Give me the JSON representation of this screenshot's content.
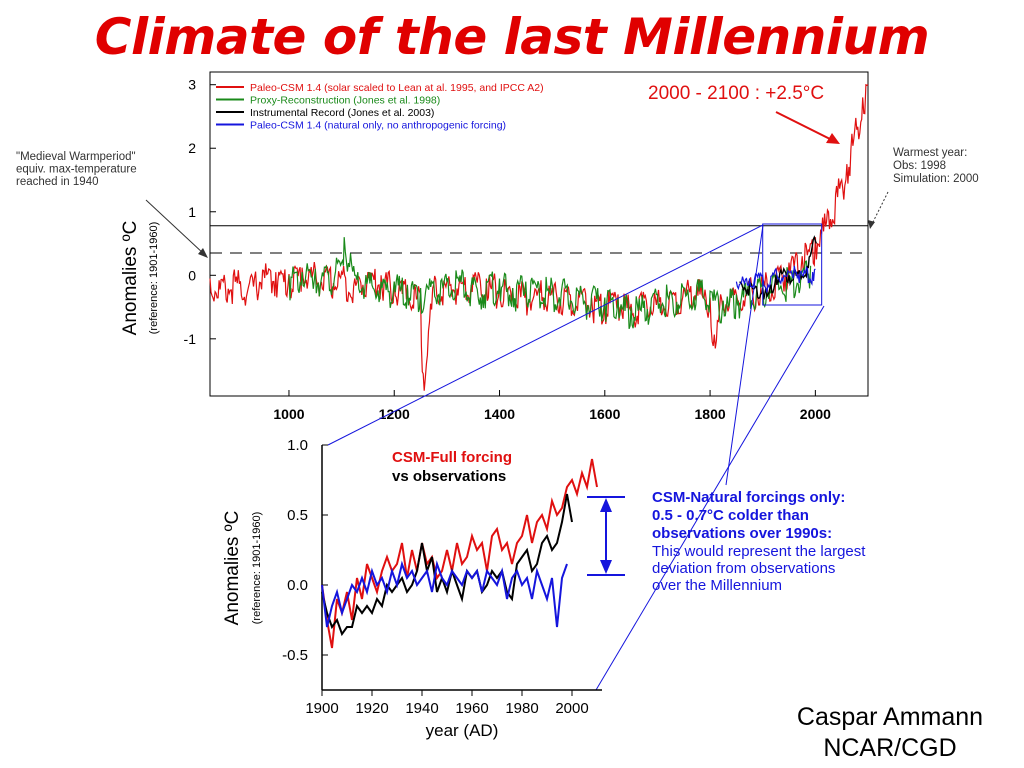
{
  "title": "Climate of the last Millennium",
  "credit": {
    "name": "Caspar Ammann",
    "org": "NCAR/CGD"
  },
  "colors": {
    "title": "#e00000",
    "red": "#e01010",
    "green": "#1a8a1a",
    "black": "#000000",
    "blue": "#1515dd",
    "annotation_blue": "#1515dd"
  },
  "chart_data": [
    {
      "type": "line",
      "ylabel": "Anomalies ºC",
      "ylabel_sub": "(reference: 1901-1960)",
      "xlim": [
        850,
        2100
      ],
      "ylim": [
        -1.9,
        3.2
      ],
      "xticks": [
        "1000",
        "1200",
        "1400",
        "1600",
        "1800",
        "2000"
      ],
      "yticks": [
        "3",
        "2",
        "1",
        "0",
        "-1"
      ],
      "grid": false,
      "legend_position": "top-left",
      "legend": [
        "Paleo-CSM 1.4 (solar scaled to Lean at al. 1995, and IPCC A2)",
        "Proxy-Reconstruction (Jones et al. 1998)",
        "Instrumental Record (Jones et al. 2003)",
        "Paleo-CSM 1.4 (natural only, no anthropogenic forcing)"
      ],
      "reference_lines": [
        {
          "style": "solid",
          "y": 0.78
        },
        {
          "style": "dashed",
          "y": 0.35
        }
      ],
      "annotations": {
        "projection": "2000 - 2100 : +2.5°C",
        "medieval": [
          "\"Medieval Warmperiod\"",
          "equiv. max-temperature",
          "reached in 1940"
        ],
        "warmest": [
          "Warmest year:",
          "Obs: 1998",
          "Simulation: 2000"
        ]
      },
      "series": [
        {
          "name": "Paleo-CSM 1.4 (solar scaled to Lean at al. 1995, and IPCC A2)",
          "color": "red",
          "x": [
            850,
            875,
            900,
            925,
            950,
            975,
            1000,
            1025,
            1050,
            1075,
            1100,
            1125,
            1150,
            1175,
            1200,
            1225,
            1250,
            1255,
            1275,
            1300,
            1325,
            1350,
            1375,
            1400,
            1425,
            1450,
            1475,
            1500,
            1525,
            1550,
            1575,
            1600,
            1625,
            1650,
            1675,
            1700,
            1725,
            1750,
            1775,
            1800,
            1810,
            1820,
            1850,
            1875,
            1900,
            1925,
            1950,
            1975,
            2000,
            2010,
            2025,
            2050,
            2060,
            2075,
            2090,
            2100
          ],
          "y": [
            -0.05,
            -0.1,
            -0.02,
            -0.12,
            0.08,
            0.05,
            0.02,
            0.12,
            0.1,
            0.0,
            0.05,
            -0.05,
            0.05,
            0.0,
            -0.1,
            -0.2,
            -0.3,
            -1.55,
            -0.15,
            -0.1,
            -0.05,
            0.0,
            -0.05,
            -0.15,
            -0.2,
            -0.25,
            -0.2,
            -0.2,
            -0.25,
            -0.3,
            -0.35,
            -0.4,
            -0.3,
            -0.45,
            -0.35,
            -0.35,
            -0.25,
            -0.2,
            -0.15,
            -0.35,
            -1.15,
            -0.3,
            -0.3,
            -0.15,
            -0.1,
            0.0,
            0.2,
            0.3,
            0.6,
            0.7,
            1.0,
            1.5,
            1.75,
            2.3,
            2.8,
            3.0
          ]
        },
        {
          "name": "Proxy-Reconstruction (Jones et al. 1998)",
          "color": "green",
          "x": [
            1000,
            1025,
            1050,
            1075,
            1100,
            1105,
            1125,
            1150,
            1175,
            1200,
            1225,
            1250,
            1275,
            1300,
            1325,
            1350,
            1375,
            1400,
            1425,
            1450,
            1475,
            1500,
            1525,
            1550,
            1575,
            1600,
            1625,
            1650,
            1675,
            1700,
            1725,
            1750,
            1775,
            1800,
            1825,
            1850,
            1875,
            1900,
            1925,
            1950,
            1975,
            1991
          ],
          "y": [
            0.0,
            0.05,
            0.1,
            0.05,
            0.2,
            0.6,
            0.0,
            -0.05,
            -0.1,
            -0.1,
            -0.15,
            -0.2,
            -0.1,
            -0.1,
            0.0,
            -0.15,
            -0.1,
            -0.05,
            -0.2,
            -0.1,
            -0.15,
            -0.15,
            -0.2,
            -0.25,
            -0.3,
            -0.35,
            -0.35,
            -0.5,
            -0.4,
            -0.3,
            -0.25,
            -0.2,
            -0.15,
            -0.25,
            -0.4,
            -0.3,
            -0.2,
            -0.1,
            0.0,
            0.0,
            0.05,
            0.15
          ]
        },
        {
          "name": "Instrumental Record (Jones et al. 2003)",
          "color": "black",
          "x": [
            1856,
            1875,
            1900,
            1910,
            1925,
            1940,
            1950,
            1960,
            1975,
            1985,
            1990,
            1998,
            2002
          ],
          "y": [
            -0.1,
            -0.15,
            -0.2,
            -0.3,
            0.0,
            0.1,
            0.0,
            0.05,
            0.0,
            0.15,
            0.3,
            0.6,
            0.5
          ]
        },
        {
          "name": "Paleo-CSM 1.4 (natural only, no anthropogenic forcing)",
          "color": "blue",
          "x": [
            1850,
            1875,
            1900,
            1910,
            1925,
            1940,
            1950,
            1960,
            1975,
            1985,
            1990,
            1995,
            2000
          ],
          "y": [
            -0.1,
            -0.05,
            0.0,
            -0.15,
            0.1,
            0.0,
            0.05,
            0.15,
            0.0,
            0.1,
            -0.05,
            0.05,
            0.1
          ]
        }
      ]
    },
    {
      "type": "line",
      "ylabel": "Anomalies ºC",
      "ylabel_sub": "(reference: 1901-1960)",
      "xlabel": "year (AD)",
      "xlim": [
        1900,
        2012
      ],
      "ylim": [
        -0.75,
        1.0
      ],
      "xticks": [
        "1900",
        "1920",
        "1940",
        "1960",
        "1980",
        "2000"
      ],
      "yticks": [
        "1.0",
        "0.5",
        "0.0",
        "-0.5"
      ],
      "grid": false,
      "legend_position": "top-left",
      "legend": [
        "CSM-Full forcing",
        "vs observations"
      ],
      "annotation": {
        "bold": [
          "CSM-Natural forcings only:",
          "0.5 - 0.7°C colder than",
          "observations over 1990s:"
        ],
        "normal": [
          "This would represent the largest",
          "deviation from observations",
          "over the Millennium"
        ]
      },
      "series": [
        {
          "name": "CSM-Full forcing",
          "color": "red",
          "x": [
            1900,
            1902,
            1904,
            1906,
            1908,
            1910,
            1912,
            1914,
            1916,
            1918,
            1920,
            1922,
            1924,
            1926,
            1928,
            1930,
            1932,
            1934,
            1936,
            1938,
            1940,
            1942,
            1944,
            1946,
            1948,
            1950,
            1952,
            1954,
            1956,
            1958,
            1960,
            1962,
            1964,
            1966,
            1968,
            1970,
            1972,
            1974,
            1976,
            1978,
            1980,
            1982,
            1984,
            1986,
            1988,
            1990,
            1992,
            1994,
            1996,
            1998,
            2000,
            2002,
            2004,
            2006,
            2008,
            2010
          ],
          "y": [
            0.0,
            -0.25,
            -0.45,
            -0.1,
            -0.2,
            -0.05,
            -0.25,
            0.05,
            -0.1,
            0.15,
            0.05,
            -0.05,
            0.1,
            0.2,
            0.1,
            0.15,
            0.3,
            0.05,
            0.25,
            0.1,
            0.3,
            0.15,
            0.2,
            0.05,
            0.1,
            0.25,
            0.1,
            0.3,
            0.15,
            0.2,
            0.35,
            0.25,
            0.3,
            0.1,
            0.35,
            0.4,
            0.25,
            0.3,
            0.15,
            0.3,
            0.35,
            0.5,
            0.3,
            0.45,
            0.5,
            0.4,
            0.6,
            0.5,
            0.55,
            0.7,
            0.75,
            0.65,
            0.8,
            0.7,
            0.9,
            0.7
          ]
        },
        {
          "name": "observations",
          "color": "black",
          "x": [
            1900,
            1902,
            1904,
            1906,
            1908,
            1910,
            1912,
            1914,
            1916,
            1918,
            1920,
            1922,
            1924,
            1926,
            1928,
            1930,
            1932,
            1934,
            1936,
            1938,
            1940,
            1942,
            1944,
            1946,
            1948,
            1950,
            1952,
            1954,
            1956,
            1958,
            1960,
            1962,
            1964,
            1966,
            1968,
            1970,
            1972,
            1974,
            1976,
            1978,
            1980,
            1982,
            1984,
            1986,
            1988,
            1990,
            1992,
            1994,
            1996,
            1998,
            2000
          ],
          "y": [
            -0.05,
            -0.2,
            -0.3,
            -0.25,
            -0.35,
            -0.3,
            -0.3,
            -0.15,
            -0.2,
            -0.15,
            -0.2,
            -0.1,
            -0.15,
            0.0,
            -0.05,
            0.0,
            0.05,
            -0.05,
            0.0,
            0.1,
            0.3,
            0.1,
            0.2,
            -0.05,
            0.05,
            -0.05,
            0.1,
            0.0,
            -0.1,
            0.1,
            0.05,
            0.1,
            -0.05,
            0.0,
            0.1,
            0.05,
            0.1,
            -0.05,
            -0.1,
            0.15,
            0.2,
            0.25,
            0.1,
            0.15,
            0.3,
            0.35,
            0.25,
            0.3,
            0.45,
            0.65,
            0.45
          ]
        },
        {
          "name": "CSM-Natural forcings only",
          "color": "blue",
          "x": [
            1900,
            1902,
            1904,
            1906,
            1908,
            1910,
            1912,
            1914,
            1916,
            1918,
            1920,
            1922,
            1924,
            1926,
            1928,
            1930,
            1932,
            1934,
            1936,
            1938,
            1940,
            1942,
            1944,
            1946,
            1948,
            1950,
            1952,
            1954,
            1956,
            1958,
            1960,
            1962,
            1964,
            1966,
            1968,
            1970,
            1972,
            1974,
            1976,
            1978,
            1980,
            1982,
            1984,
            1986,
            1988,
            1990,
            1992,
            1994,
            1996,
            1998
          ],
          "y": [
            0.0,
            -0.3,
            -0.15,
            -0.05,
            -0.2,
            -0.1,
            0.0,
            -0.05,
            0.05,
            -0.05,
            0.1,
            0.0,
            0.05,
            -0.05,
            0.1,
            0.0,
            0.15,
            0.05,
            0.1,
            0.0,
            0.05,
            0.1,
            -0.05,
            0.15,
            0.05,
            0.0,
            0.1,
            0.05,
            0.0,
            0.1,
            0.05,
            0.1,
            -0.05,
            0.1,
            0.05,
            0.0,
            0.1,
            -0.1,
            0.05,
            0.1,
            0.0,
            0.05,
            -0.1,
            0.1,
            0.0,
            -0.1,
            0.05,
            -0.3,
            0.05,
            0.15
          ]
        }
      ]
    }
  ]
}
